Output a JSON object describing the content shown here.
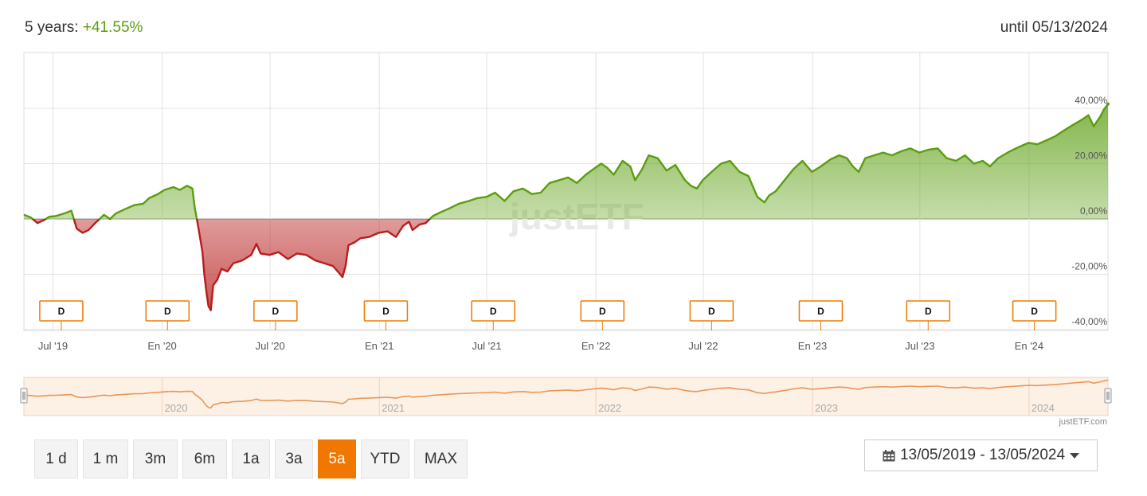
{
  "header": {
    "period_label": "5 years:",
    "performance": "+41.55%",
    "until_label": "until 05/13/2024"
  },
  "colors": {
    "positive": "#5a9e0f",
    "negative": "#b81d1d",
    "accent": "#f07800",
    "navigator_line": "#e8975a"
  },
  "chart_data": {
    "type": "area",
    "title": "",
    "xlabel": "",
    "ylabel": "",
    "x_range": [
      "2019-05-13",
      "2024-05-13"
    ],
    "ylim": [
      -40,
      50
    ],
    "y_ticks": [
      "40,00%",
      "20,00%",
      "0,00%",
      "-20,00%",
      "-40,00%"
    ],
    "y_tick_values": [
      40,
      20,
      0,
      -20,
      -40
    ],
    "x_ticks": [
      {
        "label": "Jul '19",
        "date": "2019-07-01"
      },
      {
        "label": "En '20",
        "date": "2020-01-01"
      },
      {
        "label": "Jul '20",
        "date": "2020-07-01"
      },
      {
        "label": "En '21",
        "date": "2021-01-01"
      },
      {
        "label": "Jul '21",
        "date": "2021-07-01"
      },
      {
        "label": "En '22",
        "date": "2022-01-01"
      },
      {
        "label": "Jul '22",
        "date": "2022-07-01"
      },
      {
        "label": "En '23",
        "date": "2023-01-01"
      },
      {
        "label": "Jul '23",
        "date": "2023-07-01"
      },
      {
        "label": "En '24",
        "date": "2024-01-01"
      }
    ],
    "series": [
      {
        "points": [
          [
            "2019-05-13",
            1.5
          ],
          [
            "2019-05-25",
            0.5
          ],
          [
            "2019-06-05",
            -1.5
          ],
          [
            "2019-06-15",
            -0.5
          ],
          [
            "2019-06-25",
            0.8
          ],
          [
            "2019-07-05",
            1.0
          ],
          [
            "2019-07-20",
            2.0
          ],
          [
            "2019-08-01",
            3.0
          ],
          [
            "2019-08-10",
            -3.5
          ],
          [
            "2019-08-20",
            -5.0
          ],
          [
            "2019-08-30",
            -4.0
          ],
          [
            "2019-09-10",
            -1.5
          ],
          [
            "2019-09-25",
            1.5
          ],
          [
            "2019-10-05",
            0.0
          ],
          [
            "2019-10-15",
            2.0
          ],
          [
            "2019-10-30",
            3.5
          ],
          [
            "2019-11-15",
            5.0
          ],
          [
            "2019-11-30",
            5.5
          ],
          [
            "2019-12-10",
            7.5
          ],
          [
            "2019-12-25",
            9.0
          ],
          [
            "2020-01-05",
            10.5
          ],
          [
            "2020-01-20",
            11.5
          ],
          [
            "2020-01-31",
            10.5
          ],
          [
            "2020-02-12",
            12.0
          ],
          [
            "2020-02-21",
            11.0
          ],
          [
            "2020-02-25",
            4.0
          ],
          [
            "2020-03-02",
            -3.0
          ],
          [
            "2020-03-09",
            -12.0
          ],
          [
            "2020-03-12",
            -20.0
          ],
          [
            "2020-03-16",
            -27.0
          ],
          [
            "2020-03-19",
            -31.5
          ],
          [
            "2020-03-23",
            -33.0
          ],
          [
            "2020-03-27",
            -24.0
          ],
          [
            "2020-04-03",
            -22.0
          ],
          [
            "2020-04-10",
            -18.0
          ],
          [
            "2020-04-20",
            -19.0
          ],
          [
            "2020-04-30",
            -16.0
          ],
          [
            "2020-05-15",
            -15.0
          ],
          [
            "2020-05-30",
            -13.0
          ],
          [
            "2020-06-08",
            -9.0
          ],
          [
            "2020-06-15",
            -12.5
          ],
          [
            "2020-06-30",
            -13.0
          ],
          [
            "2020-07-15",
            -12.0
          ],
          [
            "2020-07-31",
            -14.5
          ],
          [
            "2020-08-15",
            -12.5
          ],
          [
            "2020-08-31",
            -13.0
          ],
          [
            "2020-09-15",
            -15.0
          ],
          [
            "2020-09-30",
            -16.0
          ],
          [
            "2020-10-15",
            -17.0
          ],
          [
            "2020-10-31",
            -21.0
          ],
          [
            "2020-11-05",
            -17.0
          ],
          [
            "2020-11-10",
            -9.5
          ],
          [
            "2020-11-20",
            -8.5
          ],
          [
            "2020-11-30",
            -7.0
          ],
          [
            "2020-12-15",
            -6.5
          ],
          [
            "2020-12-31",
            -5.0
          ],
          [
            "2021-01-15",
            -4.5
          ],
          [
            "2021-01-29",
            -6.5
          ],
          [
            "2021-02-10",
            -2.5
          ],
          [
            "2021-02-20",
            -1.0
          ],
          [
            "2021-02-26",
            -4.0
          ],
          [
            "2021-03-10",
            -2.0
          ],
          [
            "2021-03-20",
            -1.5
          ],
          [
            "2021-04-01",
            1.0
          ],
          [
            "2021-04-15",
            2.5
          ],
          [
            "2021-05-01",
            4.0
          ],
          [
            "2021-05-15",
            5.5
          ],
          [
            "2021-06-01",
            6.5
          ],
          [
            "2021-06-15",
            7.5
          ],
          [
            "2021-07-01",
            8.0
          ],
          [
            "2021-07-15",
            9.5
          ],
          [
            "2021-07-31",
            6.5
          ],
          [
            "2021-08-15",
            10.0
          ],
          [
            "2021-08-31",
            11.0
          ],
          [
            "2021-09-15",
            9.0
          ],
          [
            "2021-09-30",
            9.5
          ],
          [
            "2021-10-15",
            13.0
          ],
          [
            "2021-10-31",
            14.0
          ],
          [
            "2021-11-15",
            15.0
          ],
          [
            "2021-11-30",
            13.0
          ],
          [
            "2021-12-15",
            16.0
          ],
          [
            "2021-12-31",
            18.5
          ],
          [
            "2022-01-10",
            20.0
          ],
          [
            "2022-01-20",
            18.5
          ],
          [
            "2022-01-31",
            16.0
          ],
          [
            "2022-02-15",
            21.0
          ],
          [
            "2022-02-28",
            19.0
          ],
          [
            "2022-03-08",
            14.0
          ],
          [
            "2022-03-20",
            18.0
          ],
          [
            "2022-03-31",
            23.0
          ],
          [
            "2022-04-15",
            22.0
          ],
          [
            "2022-04-30",
            17.5
          ],
          [
            "2022-05-15",
            19.5
          ],
          [
            "2022-05-31",
            14.0
          ],
          [
            "2022-06-10",
            12.0
          ],
          [
            "2022-06-20",
            11.0
          ],
          [
            "2022-06-30",
            14.0
          ],
          [
            "2022-07-15",
            17.0
          ],
          [
            "2022-07-31",
            20.0
          ],
          [
            "2022-08-15",
            21.0
          ],
          [
            "2022-08-31",
            17.0
          ],
          [
            "2022-09-15",
            15.5
          ],
          [
            "2022-09-30",
            8.0
          ],
          [
            "2022-10-12",
            6.0
          ],
          [
            "2022-10-20",
            8.5
          ],
          [
            "2022-10-31",
            10.0
          ],
          [
            "2022-11-15",
            14.0
          ],
          [
            "2022-11-30",
            18.0
          ],
          [
            "2022-12-15",
            21.0
          ],
          [
            "2022-12-31",
            17.0
          ],
          [
            "2023-01-15",
            19.0
          ],
          [
            "2023-01-31",
            21.5
          ],
          [
            "2023-02-15",
            23.0
          ],
          [
            "2023-02-28",
            22.0
          ],
          [
            "2023-03-10",
            19.0
          ],
          [
            "2023-03-20",
            17.0
          ],
          [
            "2023-03-31",
            22.0
          ],
          [
            "2023-04-15",
            23.0
          ],
          [
            "2023-04-30",
            24.0
          ],
          [
            "2023-05-15",
            23.0
          ],
          [
            "2023-05-31",
            24.5
          ],
          [
            "2023-06-15",
            25.5
          ],
          [
            "2023-06-30",
            24.0
          ],
          [
            "2023-07-15",
            25.0
          ],
          [
            "2023-07-31",
            25.5
          ],
          [
            "2023-08-15",
            22.0
          ],
          [
            "2023-08-31",
            21.0
          ],
          [
            "2023-09-15",
            23.0
          ],
          [
            "2023-09-30",
            20.0
          ],
          [
            "2023-10-15",
            21.0
          ],
          [
            "2023-10-27",
            19.0
          ],
          [
            "2023-11-10",
            22.0
          ],
          [
            "2023-11-30",
            24.5
          ],
          [
            "2023-12-15",
            26.0
          ],
          [
            "2023-12-31",
            27.5
          ],
          [
            "2024-01-15",
            27.0
          ],
          [
            "2024-01-31",
            28.5
          ],
          [
            "2024-02-15",
            30.0
          ],
          [
            "2024-02-29",
            32.0
          ],
          [
            "2024-03-15",
            34.0
          ],
          [
            "2024-03-31",
            36.0
          ],
          [
            "2024-04-10",
            37.5
          ],
          [
            "2024-04-19",
            33.5
          ],
          [
            "2024-04-30",
            37.0
          ],
          [
            "2024-05-06",
            39.5
          ],
          [
            "2024-05-13",
            41.55
          ]
        ]
      }
    ],
    "dividend_flags": {
      "label": "D",
      "dates": [
        "2019-07-15",
        "2020-01-10",
        "2020-07-10",
        "2021-01-12",
        "2021-07-12",
        "2022-01-12",
        "2022-07-15",
        "2023-01-15",
        "2023-07-15",
        "2024-01-10"
      ]
    },
    "navigator": {
      "year_labels": [
        "2020",
        "2021",
        "2022",
        "2023",
        "2024"
      ]
    },
    "watermark": "justETF",
    "credit": "justETF.com",
    "grid": true,
    "legend": "none"
  },
  "range_buttons": [
    {
      "label": "1 d",
      "active": false
    },
    {
      "label": "1 m",
      "active": false
    },
    {
      "label": "3m",
      "active": false
    },
    {
      "label": "6m",
      "active": false
    },
    {
      "label": "1a",
      "active": false
    },
    {
      "label": "3a",
      "active": false
    },
    {
      "label": "5a",
      "active": true
    },
    {
      "label": "YTD",
      "active": false
    },
    {
      "label": "MAX",
      "active": false
    }
  ],
  "date_range": {
    "label": "13/05/2019 - 13/05/2024",
    "icon": "calendar-icon"
  }
}
